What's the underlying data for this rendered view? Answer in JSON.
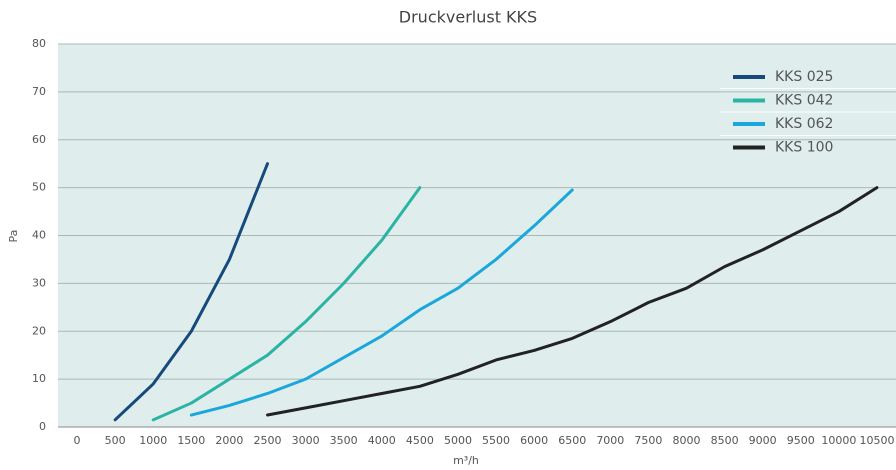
{
  "chart_data": {
    "type": "line",
    "title": "Druckverlust KKS",
    "xlabel": "m³/h",
    "ylabel": "Pa",
    "series": [
      {
        "name": "KKS 025",
        "color": "#174a7c",
        "x": [
          500,
          1000,
          1500,
          2000,
          2500
        ],
        "values": [
          1.5,
          9,
          20,
          35,
          55
        ]
      },
      {
        "name": "KKS 042",
        "color": "#2bb3a3",
        "x": [
          1000,
          1500,
          2000,
          2500,
          3000,
          3500,
          4000,
          4500
        ],
        "values": [
          1.5,
          5,
          10,
          15,
          22,
          30,
          39,
          50
        ]
      },
      {
        "name": "KKS 062",
        "color": "#1ba7dc",
        "x": [
          1500,
          2000,
          2500,
          3000,
          3500,
          4000,
          4500,
          5000,
          5500,
          6000,
          6500
        ],
        "values": [
          2.5,
          4.5,
          7,
          10,
          14.5,
          19,
          24.5,
          29,
          35,
          42,
          49.5
        ]
      },
      {
        "name": "KKS 100",
        "color": "#222222",
        "x": [
          2500,
          3000,
          3500,
          4000,
          4500,
          5000,
          5500,
          6000,
          6500,
          7000,
          7500,
          8000,
          8500,
          9000,
          9500,
          10000,
          10500
        ],
        "values": [
          2.5,
          4,
          5.5,
          7,
          8.5,
          11,
          14,
          16,
          18.5,
          22,
          26,
          29,
          33.5,
          37,
          41,
          45,
          50
        ]
      }
    ],
    "xlim": [
      -250,
      10750
    ],
    "xticks": [
      0,
      500,
      1000,
      1500,
      2000,
      2500,
      3000,
      3500,
      4000,
      4500,
      5000,
      5500,
      6000,
      6500,
      7000,
      7500,
      8000,
      8500,
      9000,
      9500,
      10000,
      10500
    ],
    "ylim": [
      0,
      80
    ],
    "yticks": [
      0,
      10,
      20,
      30,
      40,
      50,
      60,
      70,
      80
    ],
    "grid": true,
    "legend": "upper right"
  }
}
